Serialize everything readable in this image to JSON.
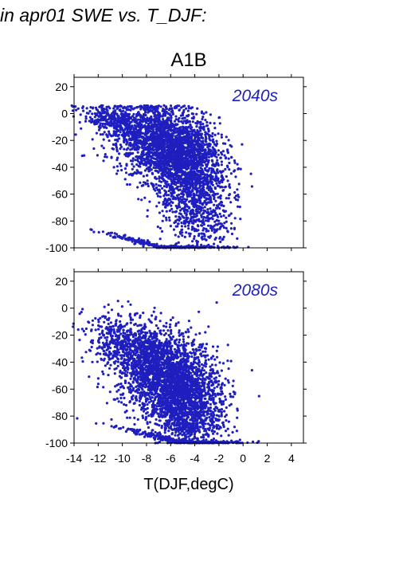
{
  "header": {
    "text": "in apr01 SWE vs. T_DJF:"
  },
  "figure": {
    "title": "A1B",
    "xlabel": "T(DJF,degC)",
    "x_ticks": [
      -14,
      -12,
      -10,
      -8,
      -6,
      -4,
      -2,
      0,
      2,
      4
    ],
    "y_ticks": [
      20,
      0,
      -20,
      -40,
      -60,
      -80,
      -100
    ]
  },
  "colors": {
    "points": "#1f1fbf",
    "panel_label": "#1f1fbf",
    "axis": "#000000"
  },
  "chart_data": [
    {
      "type": "scatter",
      "panel_label": "2040s",
      "xlim": [
        -14,
        5
      ],
      "ylim": [
        -100,
        27
      ],
      "grid": false,
      "description_of_cloud": [
        {
          "cx": -6.2,
          "cy": -24,
          "sx": 2.1,
          "sy": 15,
          "n": 2300
        },
        {
          "cx": -4.3,
          "cy": -52,
          "sx": 1.5,
          "sy": 15,
          "n": 800
        },
        {
          "cx": -10.5,
          "cy": -7,
          "sx": 1.5,
          "sy": 6,
          "n": 380
        },
        {
          "cx": -6.5,
          "cy": -100,
          "sx": 2.8,
          "sy": 1,
          "n": 260
        },
        {
          "cx": -3.8,
          "cy": -83,
          "sx": 1.4,
          "sy": 10,
          "n": 240
        }
      ]
    },
    {
      "type": "scatter",
      "panel_label": "2080s",
      "xlim": [
        -14,
        5
      ],
      "ylim": [
        -100,
        27
      ],
      "grid": false,
      "description_of_cloud": [
        {
          "cx": -6.2,
          "cy": -50,
          "sx": 2.1,
          "sy": 16,
          "n": 2300
        },
        {
          "cx": -4.8,
          "cy": -78,
          "sx": 1.5,
          "sy": 13,
          "n": 900
        },
        {
          "cx": -9.5,
          "cy": -28,
          "sx": 1.8,
          "sy": 10,
          "n": 500
        },
        {
          "cx": -5.0,
          "cy": -100,
          "sx": 2.8,
          "sy": 1,
          "n": 320
        }
      ]
    }
  ]
}
